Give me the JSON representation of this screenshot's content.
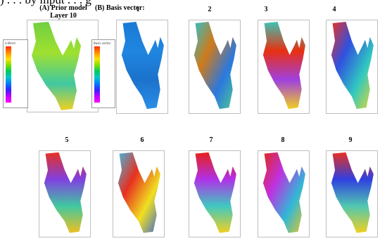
{
  "caption_fragment": ") . . . by mput . . . g",
  "titles": {
    "a_line1": "(A) Prior model",
    "a_line2": "Layer 10",
    "b": "(B) Basis vector:"
  },
  "legend_a": {
    "title": "LnPerm",
    "ticks": [
      "",
      "",
      "",
      "",
      "",
      "",
      "",
      "",
      "",
      "",
      "",
      "",
      ""
    ]
  },
  "legend_b": {
    "title": "Basis vector",
    "ticks": [
      "",
      "",
      "",
      "",
      "",
      "",
      "",
      "",
      "",
      "",
      "",
      "",
      ""
    ]
  },
  "panels": [
    {
      "label": "1",
      "colors": [
        "#1a7ad6",
        "#1f86e0",
        "#1c72cc",
        "#2a8ee6"
      ]
    },
    {
      "label": "2",
      "colors": [
        "#2fc0c8",
        "#d07a1a",
        "#2a78e0",
        "#52d08a"
      ]
    },
    {
      "label": "3",
      "colors": [
        "#3cc4b4",
        "#e83010",
        "#a040e0",
        "#f0d020"
      ]
    },
    {
      "label": "4",
      "colors": [
        "#f03020",
        "#3050e0",
        "#30c8c0",
        "#f0d828"
      ]
    },
    {
      "label": "5",
      "colors": [
        "#e83020",
        "#8040e0",
        "#40c8a0",
        "#f0c020"
      ]
    },
    {
      "label": "6",
      "colors": [
        "#40b8e0",
        "#e83020",
        "#f0e020",
        "#3060e0"
      ]
    },
    {
      "label": "7",
      "colors": [
        "#e82018",
        "#b030e8",
        "#40c8c0",
        "#f0d020"
      ]
    },
    {
      "label": "8",
      "colors": [
        "#e02818",
        "#c030e0",
        "#30b8d8",
        "#f0c818"
      ]
    },
    {
      "label": "9",
      "colors": [
        "#e83020",
        "#3040e0",
        "#50c8b0",
        "#f0d020"
      ]
    }
  ],
  "prior_colors": [
    "#70d040",
    "#40c8a0",
    "#f0d020",
    "#a0e030"
  ]
}
